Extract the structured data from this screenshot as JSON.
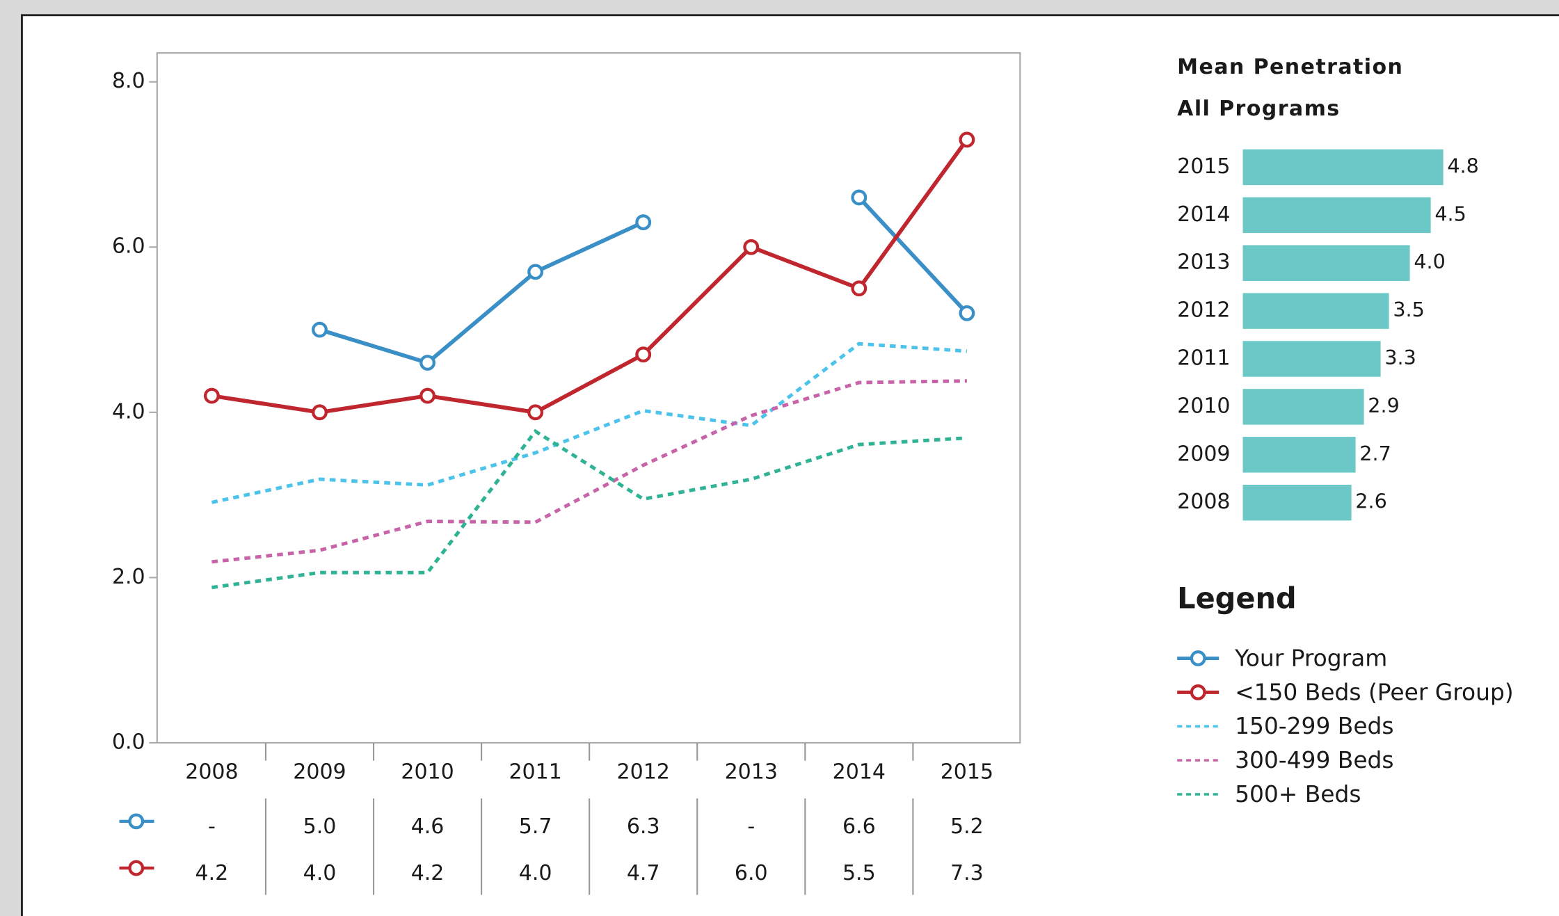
{
  "chart_data": [
    {
      "type": "line",
      "categories": [
        "2008",
        "2009",
        "2010",
        "2011",
        "2012",
        "2013",
        "2014",
        "2015"
      ],
      "ylim": [
        0,
        8.35
      ],
      "yticks": [
        {
          "value": 0,
          "label": "0.0"
        },
        {
          "value": 2,
          "label": "2.0"
        },
        {
          "value": 4,
          "label": "4.0"
        },
        {
          "value": 6,
          "label": "6.0"
        },
        {
          "value": 8,
          "label": "8.0"
        }
      ],
      "legend_title": "Legend",
      "series": [
        {
          "name": "Your Program",
          "color": "#3a8fc7",
          "dashed": false,
          "markers": true,
          "values": [
            null,
            5.0,
            4.6,
            5.7,
            6.3,
            null,
            6.6,
            5.2
          ],
          "value_labels": [
            "-",
            "5.0",
            "4.6",
            "5.7",
            "6.3",
            "-",
            "6.6",
            "5.2"
          ]
        },
        {
          "name": "<150 Beds (Peer Group)",
          "color": "#c0262e",
          "dashed": false,
          "markers": true,
          "values": [
            4.2,
            4.0,
            4.2,
            4.0,
            4.7,
            6.0,
            5.5,
            7.3
          ],
          "value_labels": [
            "4.2",
            "4.0",
            "4.2",
            "4.0",
            "4.7",
            "6.0",
            "5.5",
            "7.3"
          ]
        },
        {
          "name": "150-299 Beds",
          "color": "#4cc3ea",
          "dashed": true,
          "markers": false,
          "values": [
            2.91,
            3.19,
            3.12,
            3.51,
            4.02,
            3.84,
            4.83,
            4.74
          ]
        },
        {
          "name": "300-499 Beds",
          "color": "#c764a8",
          "dashed": true,
          "markers": false,
          "values": [
            2.19,
            2.33,
            2.68,
            2.67,
            3.36,
            3.96,
            4.36,
            4.38
          ]
        },
        {
          "name": "500+ Beds",
          "color": "#2fb394",
          "dashed": true,
          "markers": false,
          "values": [
            1.88,
            2.06,
            2.06,
            3.77,
            2.95,
            3.19,
            3.61,
            3.69
          ]
        }
      ]
    },
    {
      "type": "hbar",
      "title": "Mean Penetration",
      "subtitle": "All Programs",
      "color": "#6cc8c6",
      "categories": [
        "2015",
        "2014",
        "2013",
        "2012",
        "2011",
        "2010",
        "2009",
        "2008"
      ],
      "values": [
        4.8,
        4.5,
        4.0,
        3.5,
        3.3,
        2.9,
        2.7,
        2.6
      ],
      "value_labels": [
        "4.8",
        "4.5",
        "4.0",
        "3.5",
        "3.3",
        "2.9",
        "2.7",
        "2.6"
      ]
    }
  ]
}
